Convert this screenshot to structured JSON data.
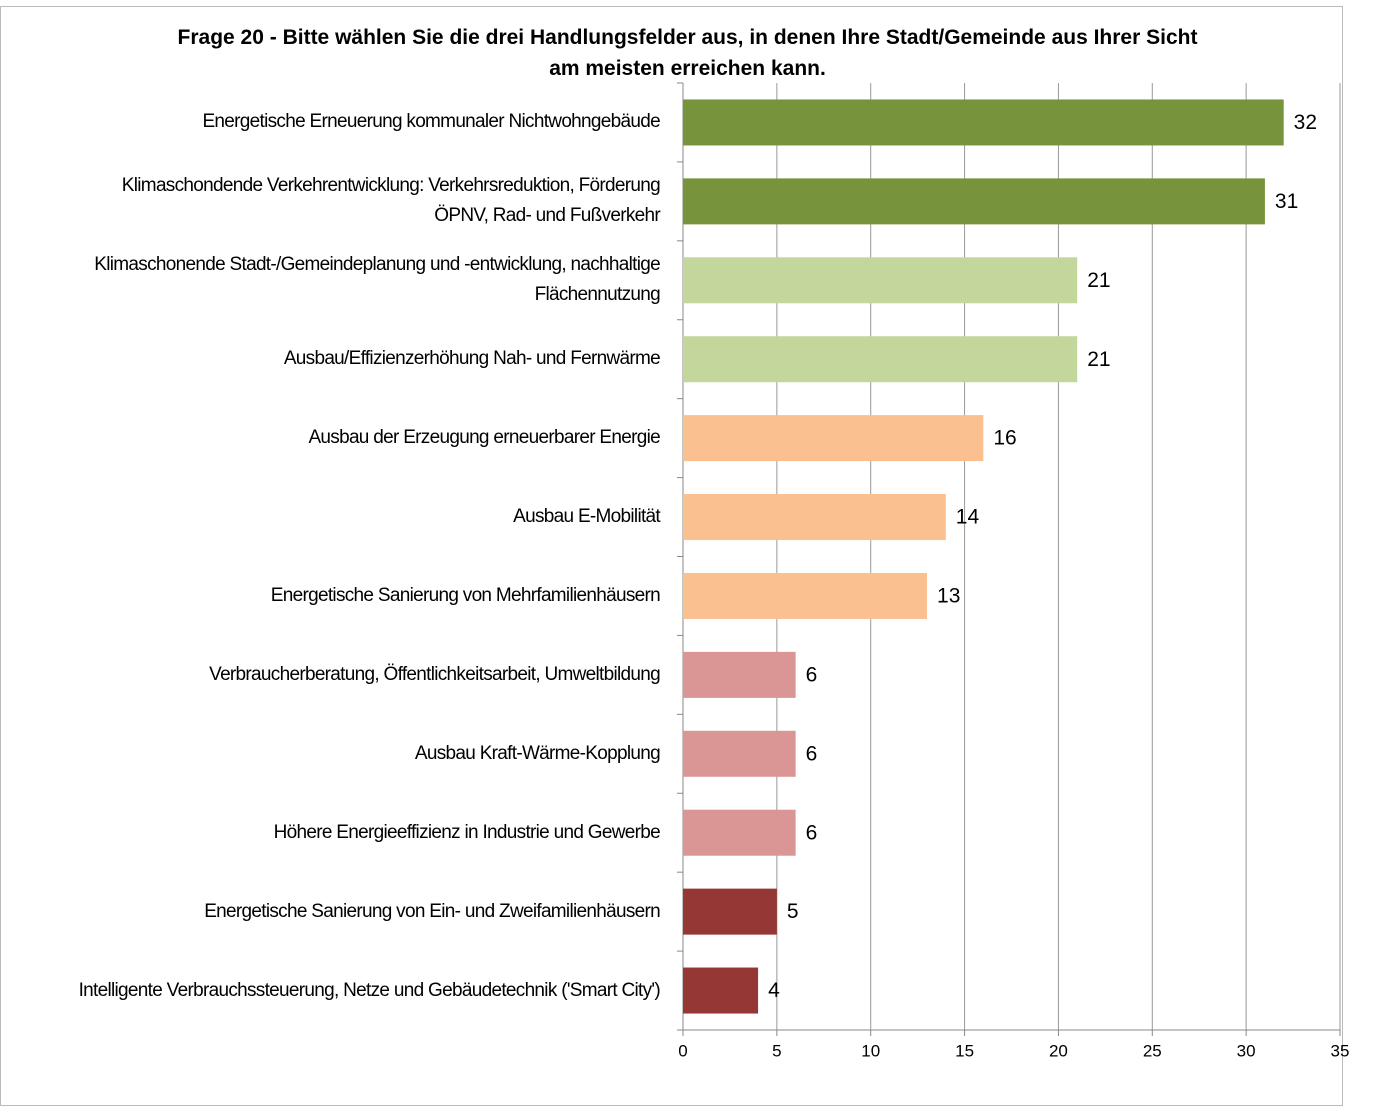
{
  "chart_data": {
    "type": "hbar",
    "title": "Frage 20 - Bitte wählen Sie die drei Handlungsfelder aus, in denen Ihre Stadt/Gemeinde aus Ihrer Sicht\nam meisten erreichen kann.",
    "categories": [
      "Energetische Erneuerung kommunaler Nichtwohngebäude",
      "Klimaschondende Verkehrentwicklung: Verkehrsreduktion, Förderung\nÖPNV, Rad- und Fußverkehr",
      "Klimaschonende Stadt-/Gemeindeplanung und -entwicklung, nachhaltige\nFlächennutzung",
      "Ausbau/Effizienzerhöhung Nah- und Fernwärme",
      "Ausbau der Erzeugung erneuerbarer Energie",
      "Ausbau E-Mobilität",
      "Energetische Sanierung von Mehrfamilienhäusern",
      "Verbraucherberatung, Öffentlichkeitsarbeit, Umweltbildung",
      "Ausbau Kraft-Wärme-Kopplung",
      "Höhere Energieeffizienz in Industrie und Gewerbe",
      "Energetische Sanierung von Ein- und Zweifamilienhäusern",
      "Intelligente Verbrauchssteuerung, Netze und Gebäudetechnik ('Smart City')"
    ],
    "values": [
      32,
      31,
      21,
      21,
      16,
      14,
      13,
      6,
      6,
      6,
      5,
      4
    ],
    "colors": [
      "#77933c",
      "#77933c",
      "#c3d69b",
      "#c3d69b",
      "#fac090",
      "#fac090",
      "#fac090",
      "#d99694",
      "#d99694",
      "#d99694",
      "#953735",
      "#953735"
    ],
    "xlim": [
      0,
      35
    ],
    "xticks": [
      0,
      5,
      10,
      15,
      20,
      25,
      30,
      35
    ],
    "grid": true
  }
}
